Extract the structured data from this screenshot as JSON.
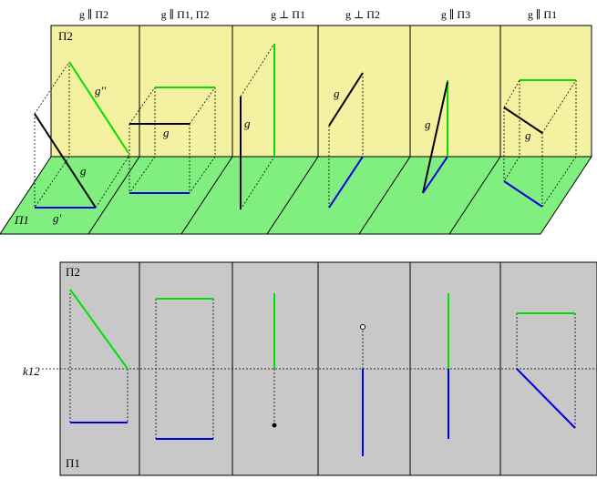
{
  "headers": [
    "g ∥ Π2",
    "g ∥ Π1, Π2",
    "g ⊥ Π1",
    "g ⊥ Π2",
    "g ∥ Π3",
    "g ∥ Π1"
  ],
  "labels": {
    "pi2_top": "Π2",
    "pi1_top": "Π1",
    "g_double_prime": "g''",
    "g_prime": "g'",
    "g": "g",
    "pi2_bottom": "Π2",
    "pi1_bottom": "Π1",
    "k12": "k12"
  },
  "colors": {
    "plane_pi2": "#f4f1a0",
    "plane_pi1": "#80ef80",
    "projection_panel": "#c8c8c8",
    "front_projection": "#00e000",
    "top_projection": "#0000e0",
    "line": "#000000"
  }
}
